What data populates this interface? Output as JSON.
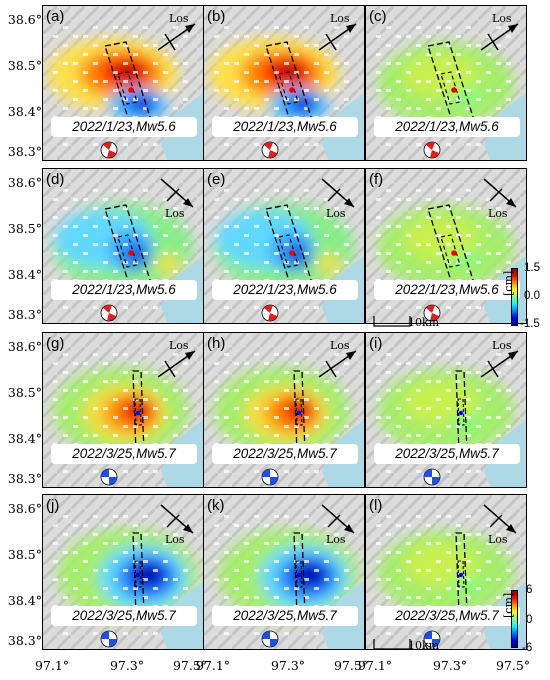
{
  "panels": [
    {
      "label": "(a)",
      "event": "2022/1/23,Mw5.6",
      "pattern": "ab-full",
      "ball": "red-strike"
    },
    {
      "label": "(b)",
      "event": "2022/1/23,Mw5.6",
      "pattern": "ab-full",
      "ball": "red-strike"
    },
    {
      "label": "(c)",
      "event": "2022/1/23,Mw5.6",
      "pattern": "residual",
      "ball": "red-strike"
    },
    {
      "label": "(d)",
      "event": "2022/1/23,Mw5.6",
      "pattern": "d-cyan",
      "ball": "red-strike"
    },
    {
      "label": "(e)",
      "event": "2022/1/23,Mw5.6",
      "pattern": "d-cyan",
      "ball": "red-strike"
    },
    {
      "label": "(f)",
      "event": "2022/1/23,Mw5.6",
      "pattern": "residual",
      "ball": "red-strike"
    },
    {
      "label": "(g)",
      "event": "2022/3/25,Mw5.7",
      "pattern": "g-red",
      "ball": "blue-strike"
    },
    {
      "label": "(h)",
      "event": "2022/3/25,Mw5.7",
      "pattern": "g-red",
      "ball": "blue-strike"
    },
    {
      "label": "(i)",
      "event": "2022/3/25,Mw5.7",
      "pattern": "residual",
      "ball": "blue-strike"
    },
    {
      "label": "(j)",
      "event": "2022/3/25,Mw5.7",
      "pattern": "j-blue",
      "ball": "blue-strike"
    },
    {
      "label": "(k)",
      "event": "2022/3/25,Mw5.7",
      "pattern": "j-blue",
      "ball": "blue-strike"
    },
    {
      "label": "(l)",
      "event": "2022/3/25,Mw5.7",
      "pattern": "residual",
      "ball": "blue-strike"
    }
  ],
  "los_label": "Los",
  "y_ticks": [
    "38.6°",
    "38.5°",
    "38.4°",
    "38.3°"
  ],
  "x_ticks": [
    "97.1°",
    "97.3°",
    "97.5°"
  ],
  "colorbars": [
    {
      "max": "1.5",
      "mid": "0.0",
      "min": "-1.5",
      "unit": "[cm]"
    },
    {
      "max": "6",
      "mid": "0",
      "min": "-6",
      "unit": "[cm]"
    }
  ],
  "scalebar": "10km",
  "colors": {
    "lake": "#add8e6",
    "terrain": "#d9d9d9",
    "fault": "#000000"
  }
}
